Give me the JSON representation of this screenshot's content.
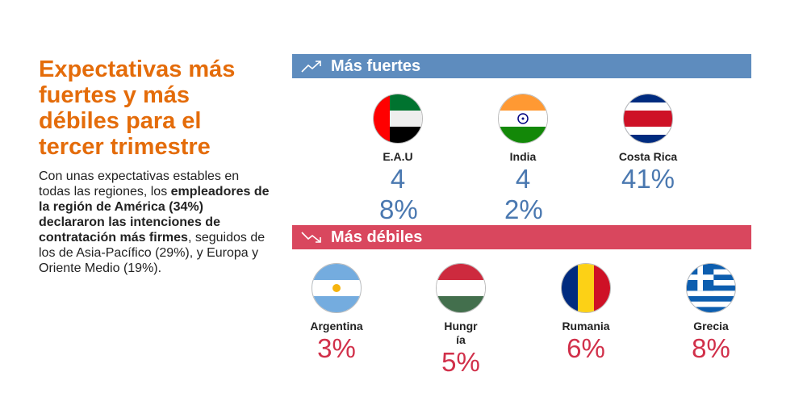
{
  "title": "Expectativas más fuertes y más débiles para el tercer trimestre",
  "body": {
    "p1": "Con unas expectativas estables en todas las regiones, los ",
    "b1": "empleadores de la región de América (34%) declararon las intenciones de contratación más firmes",
    "p2": ", seguidos de los de Asia-Pacífico (29%), y Europa y Oriente Medio (19%)."
  },
  "strong": {
    "label": "Más fuertes",
    "color": "#5E8CBE",
    "items": [
      {
        "name": "E.A.U",
        "value": "48%"
      },
      {
        "name": "India",
        "value": "42%"
      },
      {
        "name": "Costa Rica",
        "value": "41%"
      }
    ]
  },
  "weak": {
    "label": "Más débiles",
    "color": "#D9475E",
    "items": [
      {
        "name": "Argentina",
        "value": "3%"
      },
      {
        "name": "Hungría",
        "value": "5%"
      },
      {
        "name": "Rumania",
        "value": "6%"
      },
      {
        "name": "Grecia",
        "value": "8%"
      }
    ]
  }
}
